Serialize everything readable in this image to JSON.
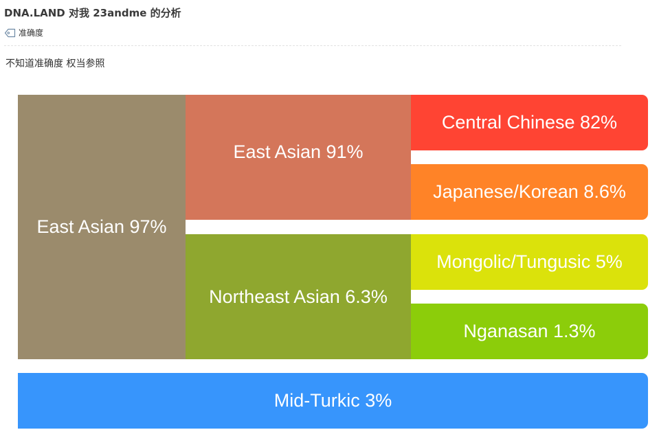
{
  "post": {
    "title": "DNA.LAND 对我 23andme 的分析",
    "tag": "准确度",
    "description": "不知道准确度 权当参照"
  },
  "chart": {
    "blocks": {
      "east_asian_97": "East Asian 97%",
      "east_asian_91": "East Asian 91%",
      "northeast_asian": "Northeast Asian 6.3%",
      "central_chinese": "Central Chinese 82%",
      "japanese_korean": "Japanese/Korean 8.6%",
      "mongolic_tungusic": "Mongolic/Tungusic 5%",
      "nganasan": "Nganasan 1.3%",
      "mid_turkic": "Mid-Turkic 3%"
    },
    "colors": {
      "east_asian_97": "#9b8b6c",
      "east_asian_91": "#d4765a",
      "northeast_asian": "#8fa72f",
      "central_chinese": "#ff4433",
      "japanese_korean": "#ff8327",
      "mongolic_tungusic": "#dbe20b",
      "nganasan": "#8ccd0a",
      "mid_turkic": "#3795fc"
    }
  }
}
